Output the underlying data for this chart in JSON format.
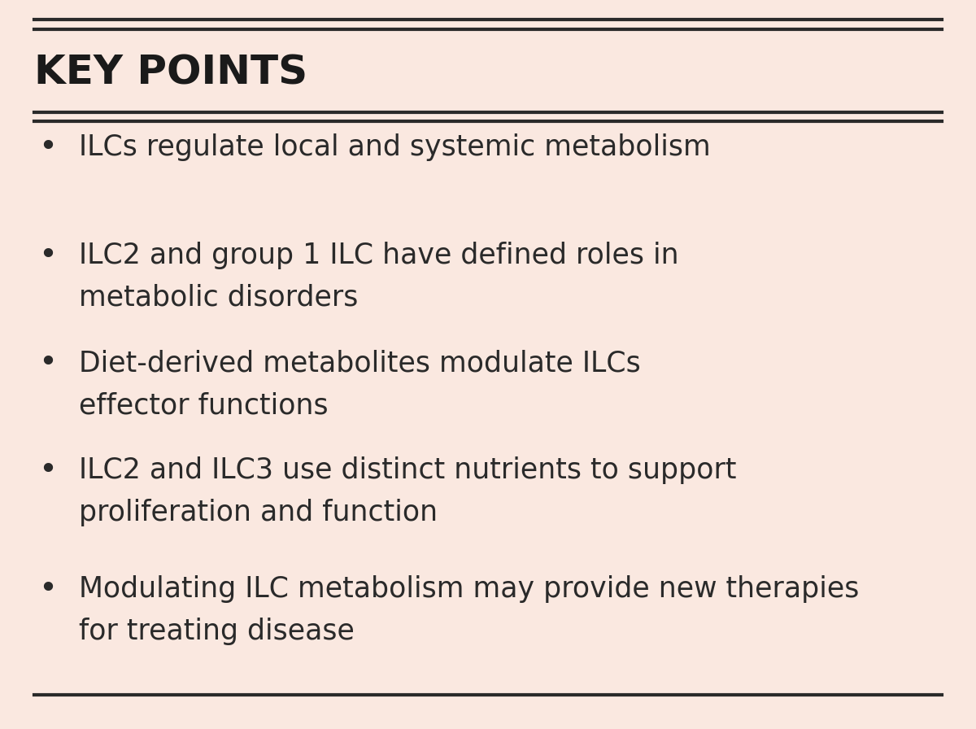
{
  "background_color": "#FAE8E0",
  "title": "KEY POINTS",
  "title_fontsize": 36,
  "title_color": "#1a1a1a",
  "title_fontweight": "bold",
  "text_color": "#2a2a2a",
  "bullet_fontsize": 25,
  "line_color": "#2a2a2a",
  "line_lw": 2.5,
  "bullet_points": [
    [
      "ILCs regulate local and systemic metabolism"
    ],
    [
      "ILC2 and group 1 ILC have defined roles in",
      "metabolic disorders"
    ],
    [
      "Diet-derived metabolites modulate ILCs",
      "effector functions"
    ],
    [
      "ILC2 and ILC3 use distinct nutrients to support",
      "proliferation and function"
    ],
    [
      "Modulating ILC metabolism may provide new therapies",
      "for treating disease"
    ]
  ],
  "font_family": "DejaVu Sans"
}
